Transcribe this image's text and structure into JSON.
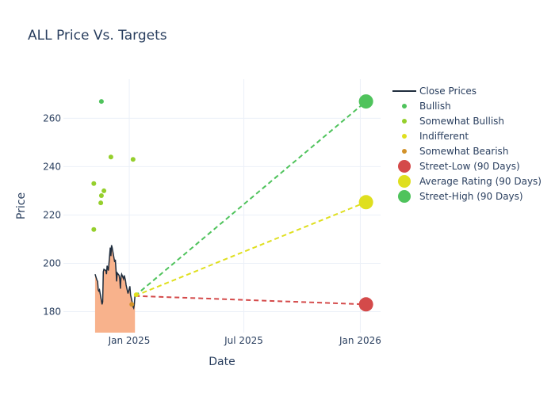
{
  "chart_data": {
    "type": "line",
    "title": "ALL Price Vs. Targets",
    "xlabel": "Date",
    "ylabel": "Price",
    "xlim": [
      "2024-09-19",
      "2026-02-02"
    ],
    "ylim": [
      171.3,
      276.2
    ],
    "grid": true,
    "legend_position": "right",
    "x_ticks": [
      {
        "date": "2025-01-01",
        "label": "Jan 2025"
      },
      {
        "date": "2025-07-01",
        "label": "Jul 2025"
      },
      {
        "date": "2026-01-01",
        "label": "Jan 2026"
      }
    ],
    "y_ticks": [
      180,
      200,
      220,
      240,
      260
    ],
    "series": [
      {
        "name": "Close Prices",
        "kind": "line",
        "color": "#1f2d3d",
        "fill_color": "#f8b28c",
        "points": [
          [
            "2024-11-08",
            195.5
          ],
          [
            "2024-11-11",
            193.0
          ],
          [
            "2024-11-12",
            192.5
          ],
          [
            "2024-11-13",
            189.0
          ],
          [
            "2024-11-14",
            188.5
          ],
          [
            "2024-11-15",
            189.0
          ],
          [
            "2024-11-18",
            184.5
          ],
          [
            "2024-11-19",
            183.0
          ],
          [
            "2024-11-20",
            184.0
          ],
          [
            "2024-11-21",
            196.5
          ],
          [
            "2024-11-22",
            197.5
          ],
          [
            "2024-11-25",
            197.0
          ],
          [
            "2024-11-26",
            195.5
          ],
          [
            "2024-11-27",
            199.0
          ],
          [
            "2024-11-29",
            197.0
          ],
          [
            "2024-12-02",
            206.5
          ],
          [
            "2024-12-03",
            203.0
          ],
          [
            "2024-12-04",
            207.5
          ],
          [
            "2024-12-05",
            206.5
          ],
          [
            "2024-12-06",
            205.0
          ],
          [
            "2024-12-09",
            200.5
          ],
          [
            "2024-12-10",
            201.5
          ],
          [
            "2024-12-11",
            197.5
          ],
          [
            "2024-12-12",
            192.5
          ],
          [
            "2024-12-13",
            196.0
          ],
          [
            "2024-12-16",
            195.0
          ],
          [
            "2024-12-17",
            193.5
          ],
          [
            "2024-12-18",
            189.5
          ],
          [
            "2024-12-19",
            194.5
          ],
          [
            "2024-12-20",
            195.5
          ],
          [
            "2024-12-23",
            193.5
          ],
          [
            "2024-12-24",
            195.0
          ],
          [
            "2024-12-26",
            193.0
          ],
          [
            "2024-12-27",
            191.0
          ],
          [
            "2024-12-30",
            187.5
          ],
          [
            "2024-12-31",
            188.5
          ],
          [
            "2025-01-02",
            190.5
          ],
          [
            "2025-01-03",
            187.0
          ],
          [
            "2025-01-06",
            183.5
          ],
          [
            "2025-01-07",
            182.0
          ],
          [
            "2025-01-08",
            181.5
          ],
          [
            "2025-01-09",
            183.0
          ],
          [
            "2025-01-10",
            186.5
          ]
        ]
      },
      {
        "name": "Bullish",
        "kind": "points",
        "color": "#4fc35c",
        "points": [
          [
            "2024-11-18",
            267
          ]
        ]
      },
      {
        "name": "Somewhat Bullish",
        "kind": "points",
        "color": "#95cf2c",
        "points": [
          [
            "2024-11-06",
            233
          ],
          [
            "2024-11-06",
            214
          ],
          [
            "2024-11-17",
            225
          ],
          [
            "2024-11-18",
            228
          ],
          [
            "2024-11-22",
            230
          ],
          [
            "2024-12-03",
            244
          ],
          [
            "2025-01-07",
            243
          ]
        ]
      },
      {
        "name": "Indifferent",
        "kind": "points",
        "color": "#dfdf1f",
        "points": [
          [
            "2025-01-12",
            187
          ]
        ]
      },
      {
        "name": "Somewhat Bearish",
        "kind": "points",
        "color": "#d2922a",
        "points": [
          [
            "2025-01-05",
            183
          ]
        ]
      },
      {
        "name": "Street-Low (90 Days)",
        "kind": "target",
        "color": "#d44a4a",
        "start": [
          "2025-01-10",
          186.5
        ],
        "end": [
          "2026-01-10",
          183
        ]
      },
      {
        "name": "Average Rating (90 Days)",
        "kind": "target",
        "color": "#dfdf1f",
        "start": [
          "2025-01-10",
          186.5
        ],
        "end": [
          "2026-01-10",
          225.3
        ]
      },
      {
        "name": "Street-High (90 Days)",
        "kind": "target",
        "color": "#4fc35c",
        "start": [
          "2025-01-10",
          186.5
        ],
        "end": [
          "2026-01-10",
          267
        ]
      }
    ]
  }
}
